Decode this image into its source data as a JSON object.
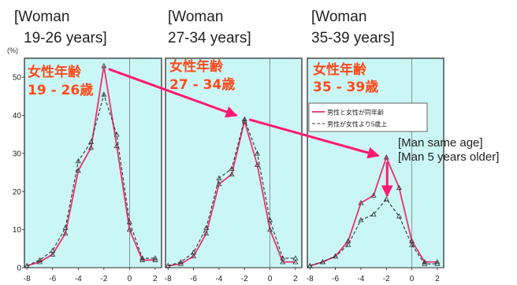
{
  "headers": [
    {
      "line1": "[Woman",
      "line2": "19-26 years]"
    },
    {
      "line1": "[Woman",
      "line2": "27-34 years]"
    },
    {
      "line1": "[Woman",
      "line2": "35-39 years]"
    }
  ],
  "panel_labels": [
    {
      "line1": "女性年齢",
      "line2": "19 - 26歳"
    },
    {
      "line1": "女性年齢",
      "line2": "27 - 34歳"
    },
    {
      "line1": "女性年齢",
      "line2": "35 - 39歳"
    }
  ],
  "annotation": {
    "line1": "[Man same age]",
    "line2": "[Man 5 years older]"
  },
  "colors": {
    "solid": "#e8336d",
    "dashed": "#333333",
    "panel_bg": "#cbf6f6",
    "arrow": "#ff1a6e"
  },
  "chart_data": {
    "type": "line",
    "ylabel": "(%)",
    "y_ticks": [
      "0",
      "10",
      "20",
      "30",
      "40",
      "50"
    ],
    "x_ticks": [
      "-8",
      "-6",
      "-4",
      "-2",
      "0",
      "2"
    ],
    "ylim": [
      0,
      55
    ],
    "xlim": [
      -8.2,
      2.5
    ],
    "x": [
      -8,
      -7,
      -6,
      -5,
      -4,
      -3,
      -2,
      -1,
      0,
      1,
      2
    ],
    "legend": {
      "solid_label": "男性と女性が同年齢",
      "dashed_label": "男性が女性より5歳上",
      "placement": "top-right of third panel"
    },
    "panels": [
      {
        "series": [
          {
            "style": "solid",
            "values": [
              0.5,
              1.5,
              3.5,
              9,
              25.5,
              31.5,
              53,
              32,
              10,
              2,
              2
            ]
          },
          {
            "style": "dashed",
            "values": [
              0.5,
              2,
              4.5,
              10.5,
              28,
              33,
              45.5,
              35,
              12,
              2.5,
              2.5
            ]
          }
        ]
      },
      {
        "series": [
          {
            "style": "solid",
            "values": [
              0.5,
              1,
              3,
              9,
              22,
              24.5,
              38.5,
              27,
              10,
              1.5,
              1.5
            ]
          },
          {
            "style": "dashed",
            "values": [
              0.5,
              1.5,
              4,
              10.5,
              23.5,
              26,
              39,
              30,
              12.5,
              2.5,
              2.5
            ]
          }
        ]
      },
      {
        "series": [
          {
            "style": "solid",
            "values": [
              0.5,
              1.5,
              3,
              7,
              17,
              19,
              29,
              21,
              7,
              1.5,
              1.5
            ]
          },
          {
            "style": "dashed",
            "values": [
              0.5,
              1.5,
              3,
              6,
              12.5,
              14,
              18,
              13.5,
              6,
              1,
              1
            ]
          }
        ]
      }
    ]
  }
}
